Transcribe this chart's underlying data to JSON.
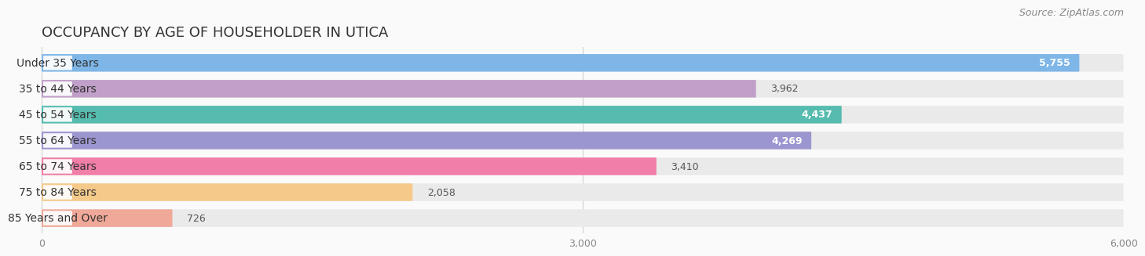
{
  "title": "OCCUPANCY BY AGE OF HOUSEHOLDER IN UTICA",
  "source": "Source: ZipAtlas.com",
  "categories": [
    "Under 35 Years",
    "35 to 44 Years",
    "45 to 54 Years",
    "55 to 64 Years",
    "65 to 74 Years",
    "75 to 84 Years",
    "85 Years and Over"
  ],
  "values": [
    5755,
    3962,
    4437,
    4269,
    3410,
    2058,
    726
  ],
  "bar_colors": [
    "#7EB6E8",
    "#C09FC8",
    "#55BCAF",
    "#9B96D0",
    "#F07EA8",
    "#F5C98A",
    "#F0A898"
  ],
  "bar_bg_color": "#EAEAEA",
  "background_color": "#FAFAFA",
  "xlim": [
    0,
    6000
  ],
  "xticks": [
    0,
    3000,
    6000
  ],
  "title_fontsize": 13,
  "source_fontsize": 9,
  "label_fontsize": 10,
  "value_fontsize": 9,
  "bar_height": 0.68,
  "value_inside_threshold": 4000
}
